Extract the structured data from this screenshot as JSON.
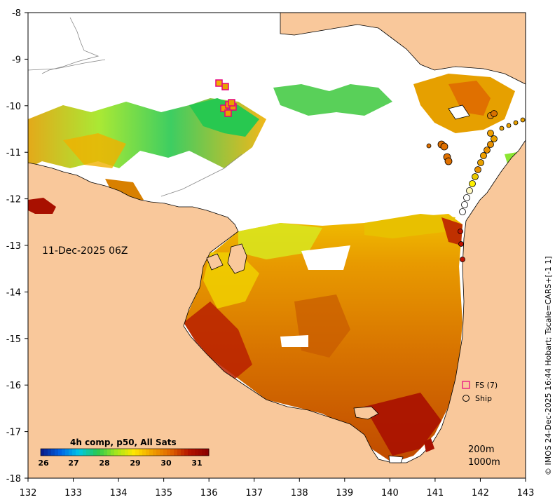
{
  "map": {
    "date_label": "11-Dec-2025 06Z",
    "credit": "© IMOS 24-Dec-2025 16:44 Hobart; Tscale=CARS+[-1 1]",
    "x_ticks": [
      "132",
      "133",
      "134",
      "135",
      "136",
      "137",
      "138",
      "139",
      "140",
      "141",
      "142",
      "143"
    ],
    "y_ticks": [
      "-8",
      "-9",
      "-10",
      "-11",
      "-12",
      "-13",
      "-14",
      "-15",
      "-16",
      "-17",
      "-18"
    ],
    "lon_range": [
      132,
      143
    ],
    "lat_range": [
      -18,
      -8
    ],
    "colorbar": {
      "title": "4h comp, p50, All Sats",
      "ticks": [
        "26",
        "27",
        "28",
        "29",
        "30",
        "31"
      ],
      "range": [
        26,
        31.7
      ],
      "colors": [
        "#0a1e8c",
        "#0064e6",
        "#00c8e6",
        "#28c850",
        "#a0e61e",
        "#ffe600",
        "#f0a000",
        "#e06400",
        "#b41400",
        "#8c0000"
      ]
    },
    "legend": {
      "fs_label": "FS (7)",
      "ship_label": "Ship"
    },
    "depth_labels": [
      "200m",
      "1000m"
    ],
    "land_color": "#f9c89b",
    "fs_color": "#e6007e"
  }
}
